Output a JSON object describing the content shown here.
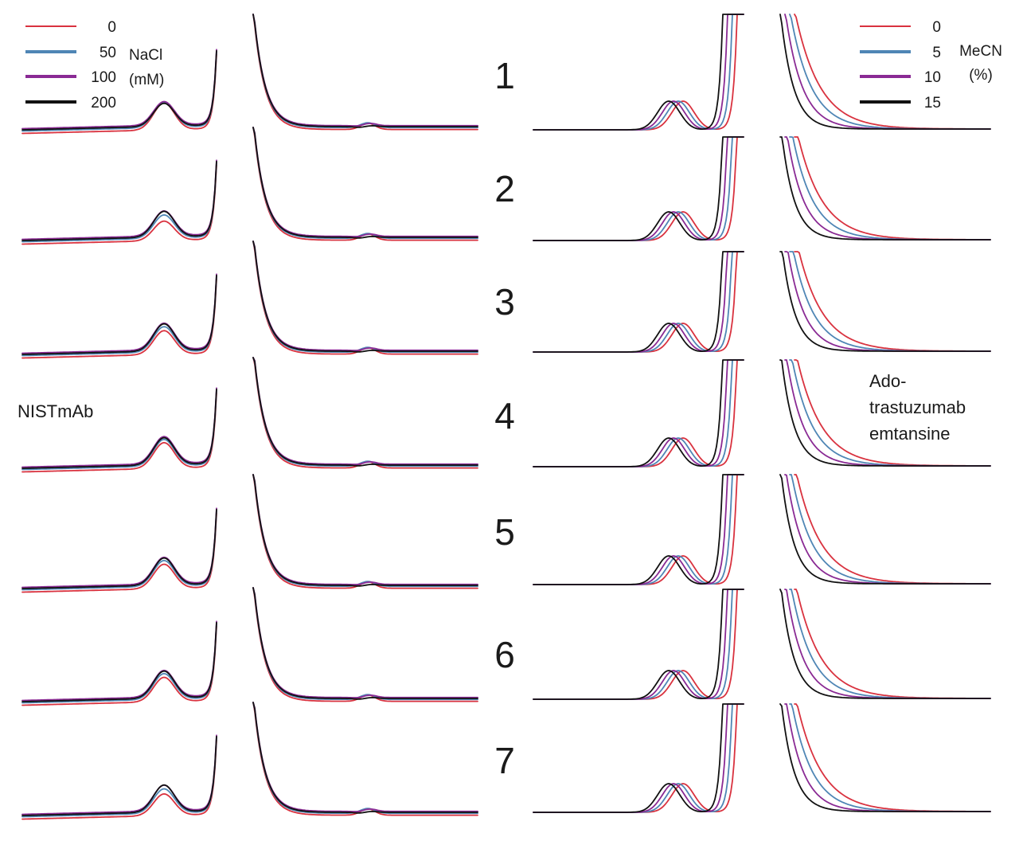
{
  "chart_data": [
    {
      "type": "line",
      "panel_label": "NISTmAb",
      "legend_title": [
        "NaCl",
        "(mM)"
      ],
      "series": [
        {
          "name": "0",
          "color": "#d9323f"
        },
        {
          "name": "50",
          "color": "#4f86b5"
        },
        {
          "name": "100",
          "color": "#8a2a94"
        },
        {
          "name": "200",
          "color": "#111111"
        }
      ],
      "traces": [
        {
          "row": "1",
          "peak": [
            1,
            0.92,
            0.87,
            0.85
          ]
        },
        {
          "row": "2",
          "peak": [
            0.72,
            0.86,
            0.92,
            0.95
          ]
        },
        {
          "row": "3",
          "peak": [
            0.88,
            0.94,
            0.98,
            1
          ]
        },
        {
          "row": "4",
          "peak": [
            0.95,
            0.98,
            1,
            1
          ]
        },
        {
          "row": "5",
          "peak": [
            0.9,
            0.95,
            0.98,
            1
          ]
        },
        {
          "row": "6",
          "peak": [
            0.9,
            0.95,
            0.98,
            1
          ]
        },
        {
          "row": "7",
          "peak": [
            0.8,
            0.9,
            0.95,
            1
          ]
        }
      ]
    },
    {
      "type": "line",
      "panel_label": [
        "Ado-",
        "trastuzumab",
        "emtansine"
      ],
      "legend_title": [
        "MeCN",
        "(%)"
      ],
      "series": [
        {
          "name": "0",
          "color": "#d9323f"
        },
        {
          "name": "5",
          "color": "#4f86b5"
        },
        {
          "name": "10",
          "color": "#8a2a94"
        },
        {
          "name": "15",
          "color": "#111111"
        }
      ]
    }
  ],
  "row_labels": [
    "1",
    "2",
    "3",
    "4",
    "5",
    "6",
    "7"
  ]
}
